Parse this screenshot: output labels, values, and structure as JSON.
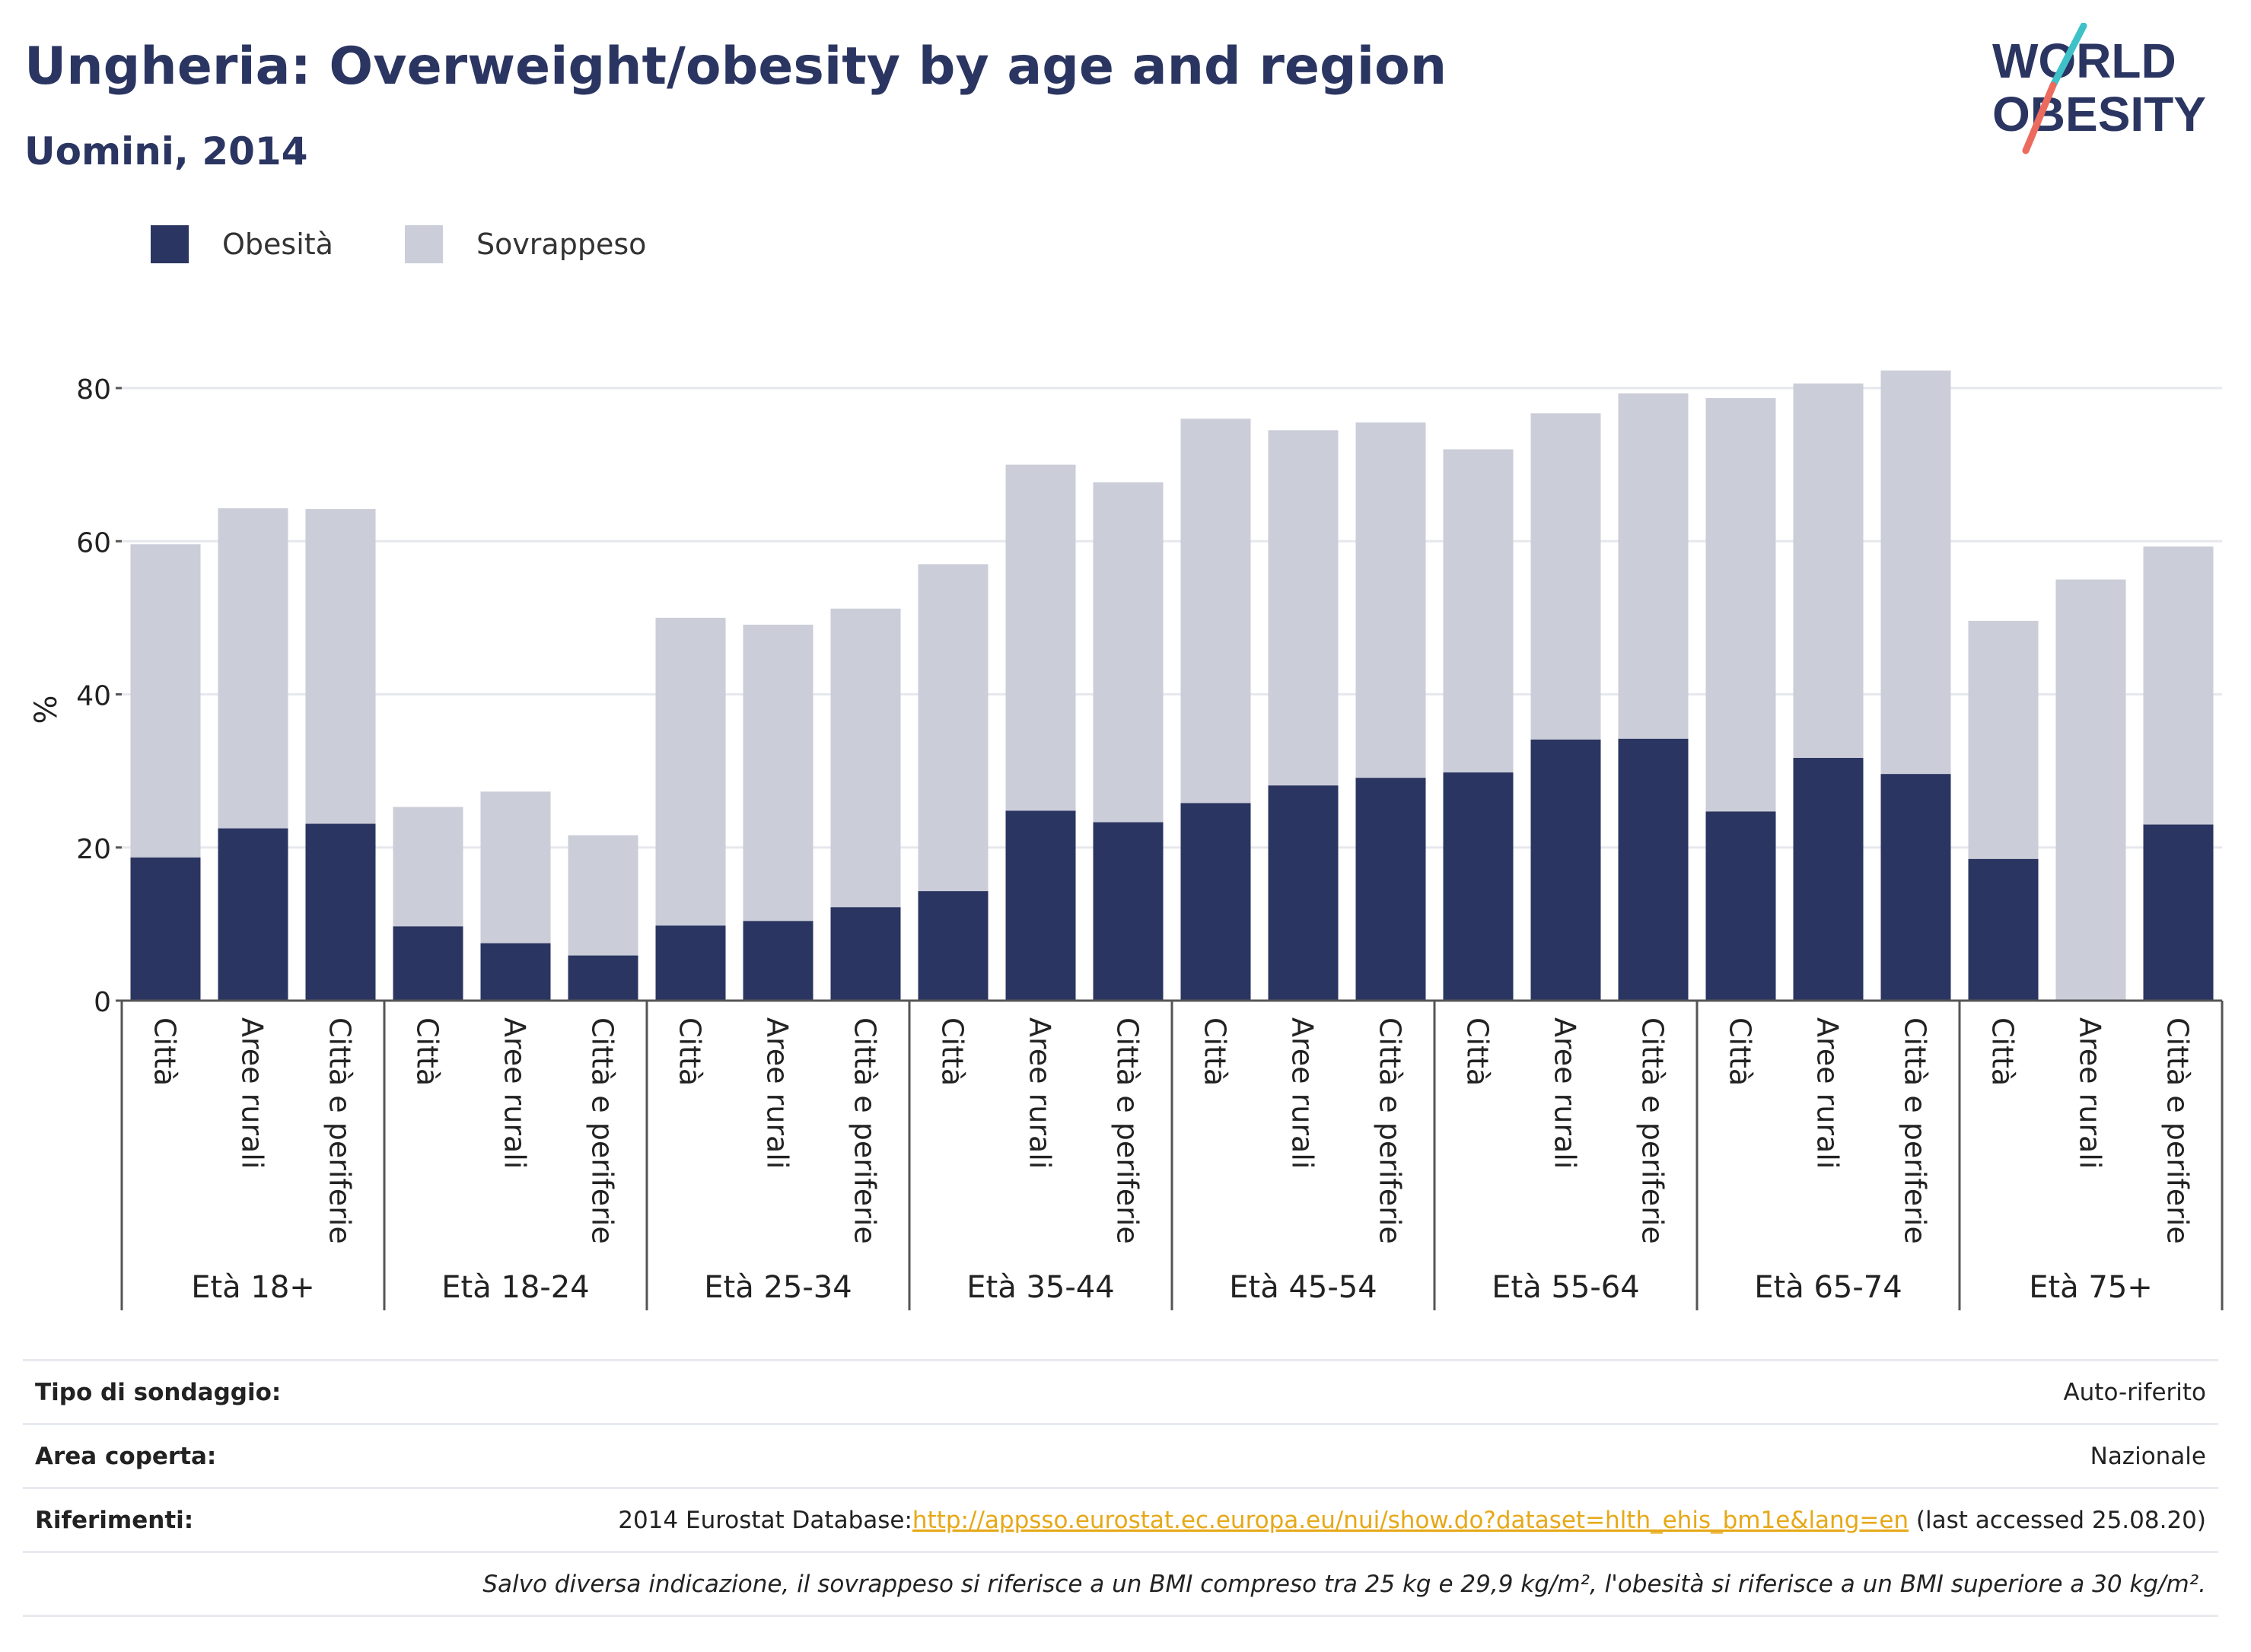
{
  "header": {
    "title": "Ungheria: Overweight/obesity by age and region",
    "subtitle": "Uomini, 2014"
  },
  "logo": {
    "line1": "WORLD",
    "line2": "OBESITY"
  },
  "colors": {
    "obesity": "#2b3561",
    "overweight": "#cbcdd8",
    "grid": "#e6e8ee",
    "axis": "#555555",
    "link": "#e6a817"
  },
  "chart_data": {
    "type": "bar",
    "stacked": true,
    "ylabel": "%",
    "ylim": [
      0,
      85
    ],
    "yticks": [
      0,
      20,
      40,
      60,
      80
    ],
    "grid": true,
    "legend_position": "top-left",
    "groups": [
      "Età 18+",
      "Età 18-24",
      "Età 25-34",
      "Età 35-44",
      "Età 45-54",
      "Età 55-64",
      "Età 65-74",
      "Età 75+"
    ],
    "categories": [
      "Città",
      "Aree rurali",
      "Città e periferie"
    ],
    "series": [
      {
        "name": "Obesità",
        "values": [
          [
            18.7,
            22.5,
            23.1
          ],
          [
            9.7,
            7.5,
            5.9
          ],
          [
            9.8,
            10.4,
            12.2
          ],
          [
            14.3,
            24.8,
            23.3
          ],
          [
            25.8,
            28.1,
            29.1
          ],
          [
            29.8,
            34.1,
            34.2
          ],
          [
            24.7,
            31.7,
            29.6
          ],
          [
            18.5,
            0,
            23.0
          ]
        ]
      },
      {
        "name": "Sovrappeso",
        "values": [
          [
            40.9,
            41.8,
            41.1
          ],
          [
            15.6,
            19.8,
            15.7
          ],
          [
            40.2,
            38.7,
            39.0
          ],
          [
            42.7,
            45.2,
            44.4
          ],
          [
            50.2,
            46.4,
            46.4
          ],
          [
            42.2,
            42.6,
            45.1
          ],
          [
            54.0,
            48.9,
            52.7
          ],
          [
            31.1,
            55.0,
            36.3
          ]
        ]
      }
    ]
  },
  "info": {
    "rows": [
      {
        "label": "Tipo di sondaggio:",
        "value": "Auto-riferito"
      },
      {
        "label": "Area coperta:",
        "value": "Nazionale"
      }
    ],
    "references": {
      "label": "Riferimenti:",
      "prefix": "2014 Eurostat Database:",
      "link": "http://appsso.eurostat.ec.europa.eu/nui/show.do?dataset=hlth_ehis_bm1e&lang=en",
      "suffix": " (last accessed 25.08.20)"
    },
    "note": "Salvo diversa indicazione, il sovrappeso si riferisce a un BMI compreso tra 25 kg e 29,9 kg/m², l'obesità si riferisce a un BMI superiore a 30 kg/m²."
  }
}
